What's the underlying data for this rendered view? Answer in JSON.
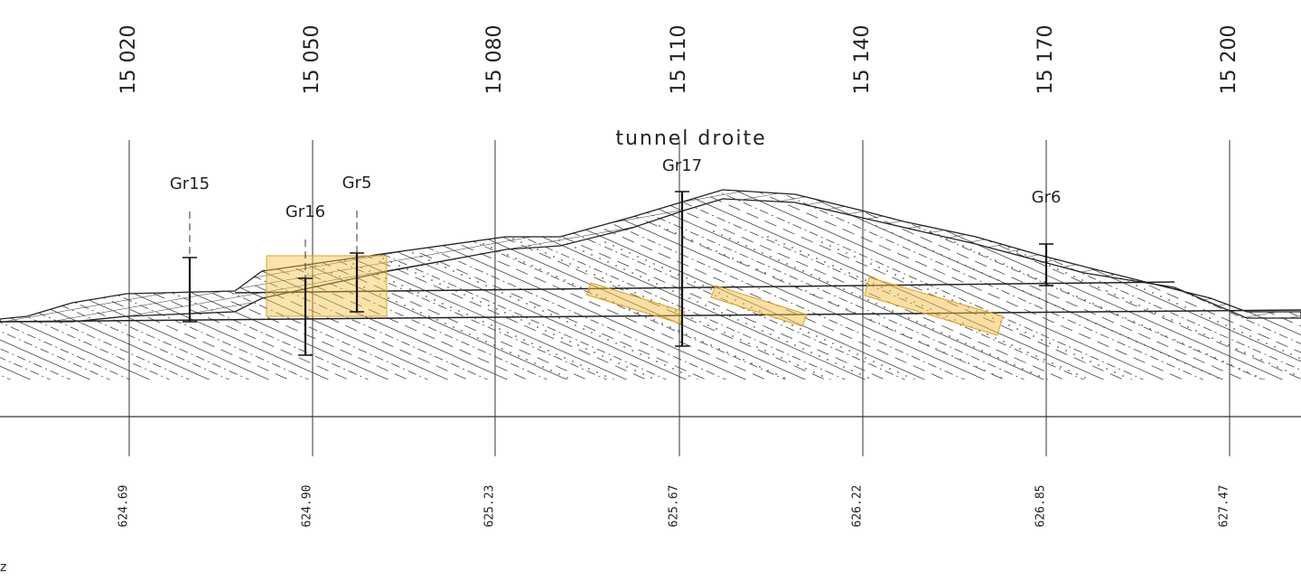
{
  "title": "tunnel droite",
  "stations": [
    "15 020",
    "15 050",
    "15 080",
    "15 110",
    "15 140",
    "15 170",
    "15 200"
  ],
  "elevations": [
    "624.69",
    "624.90",
    "625.23",
    "625.67",
    "626.22",
    "626.85",
    "627.47"
  ],
  "boreholes": [
    "Gr15",
    "Gr16",
    "Gr5",
    "Gr17",
    "Gr6"
  ],
  "corner_label": "z"
}
